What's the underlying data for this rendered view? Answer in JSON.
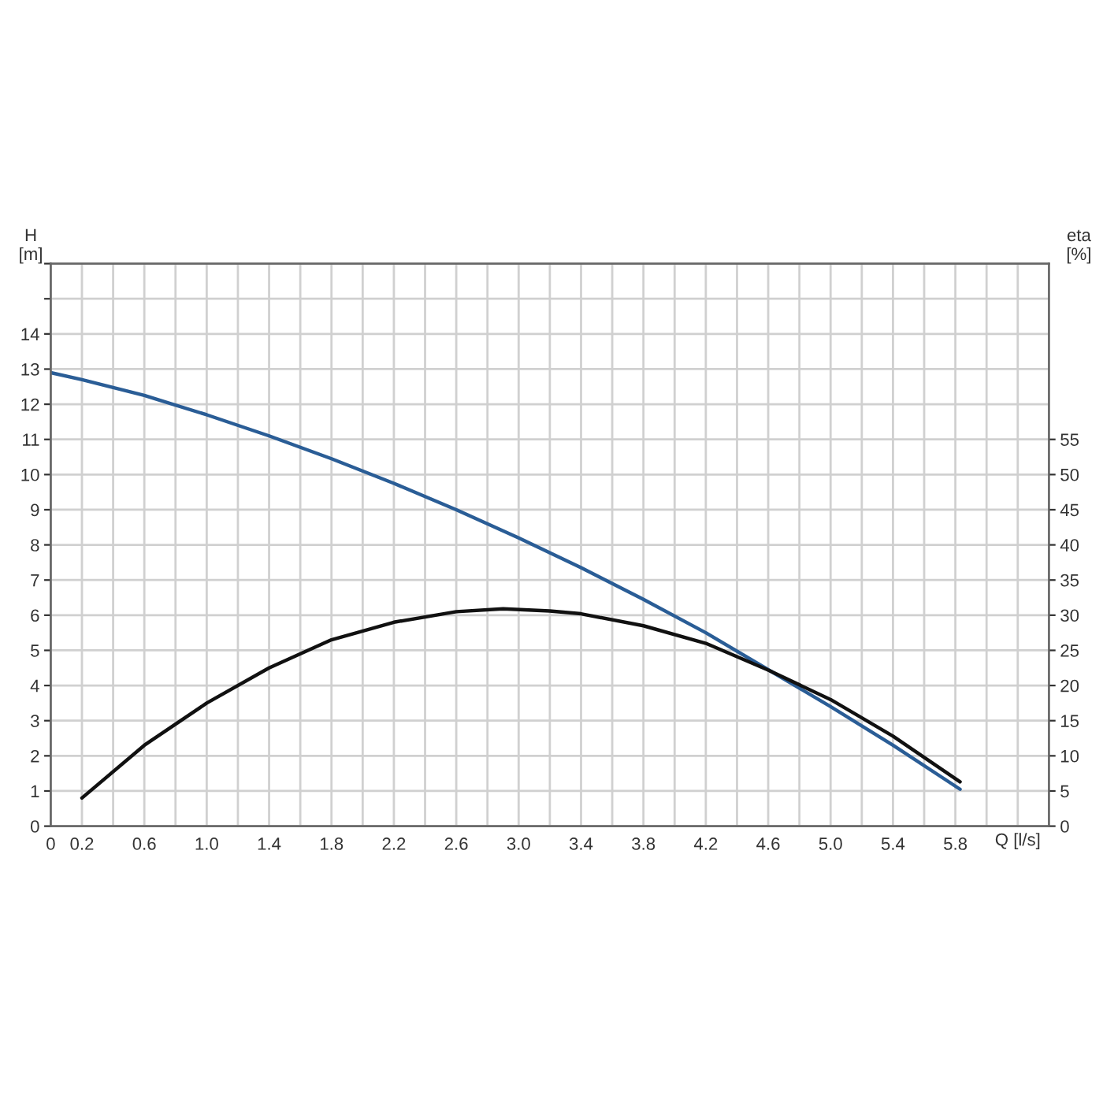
{
  "chart_data": {
    "type": "line",
    "xlabel": "Q [l/s]",
    "ylabel": "H\n[m]",
    "y2label": "eta\n[%]",
    "xlim": [
      0,
      6.4
    ],
    "xticks": [
      0,
      0.2,
      {
        "value": 0.4,
        "label": null
      },
      0.6,
      {
        "value": 0.8,
        "label": null
      },
      {
        "value": 1.0,
        "label": "1.0"
      },
      {
        "value": 1.2,
        "label": null
      },
      1.4,
      {
        "value": 1.6,
        "label": null
      },
      1.8,
      {
        "value": 2.0,
        "label": null
      },
      2.2,
      {
        "value": 2.4,
        "label": null
      },
      2.6,
      {
        "value": 2.8,
        "label": null
      },
      {
        "value": 3.0,
        "label": "3.0"
      },
      {
        "value": 3.2,
        "label": null
      },
      3.4,
      {
        "value": 3.6,
        "label": null
      },
      3.8,
      {
        "value": 4.0,
        "label": null
      },
      4.2,
      {
        "value": 4.4,
        "label": null
      },
      4.6,
      {
        "value": 4.8,
        "label": null
      },
      {
        "value": 5.0,
        "label": "5.0"
      },
      {
        "value": 5.2,
        "label": null
      },
      5.4,
      {
        "value": 5.6,
        "label": null
      },
      5.8,
      {
        "value": 6.0,
        "label": null
      },
      {
        "value": 6.2,
        "label": null
      }
    ],
    "ylim": [
      0,
      16
    ],
    "yticks": [
      0,
      1,
      2,
      3,
      4,
      5,
      6,
      7,
      8,
      9,
      10,
      11,
      12,
      13,
      14,
      {
        "value": 15,
        "label": null
      },
      {
        "value": 16,
        "label": null
      }
    ],
    "y2lim": [
      0,
      80
    ],
    "y2ticks": [
      0,
      5,
      10,
      15,
      20,
      25,
      30,
      35,
      40,
      45,
      50,
      55
    ],
    "grid": true,
    "marker": "none",
    "line_style": "solid",
    "series": [
      {
        "color": "#2a5d96",
        "axis": "y",
        "x": [
          0,
          0.2,
          0.6,
          1.0,
          1.4,
          1.8,
          2.2,
          2.6,
          3.0,
          3.4,
          3.8,
          4.2,
          4.6,
          5.0,
          5.4,
          5.83
        ],
        "values": [
          12.9,
          12.7,
          12.25,
          11.7,
          11.1,
          10.45,
          9.75,
          9.0,
          8.2,
          7.35,
          6.45,
          5.5,
          4.45,
          3.4,
          2.3,
          1.05
        ]
      },
      {
        "color": "#111111",
        "axis": "y2",
        "x": [
          0.2,
          0.6,
          1.0,
          1.4,
          1.8,
          2.2,
          2.6,
          2.9,
          3.2,
          3.4,
          3.8,
          4.2,
          4.6,
          5.0,
          5.4,
          5.83
        ],
        "values": [
          4,
          11.5,
          17.5,
          22.5,
          26.5,
          29,
          30.5,
          30.9,
          30.6,
          30.2,
          28.5,
          26,
          22.2,
          18,
          12.8,
          6.3
        ]
      }
    ]
  }
}
